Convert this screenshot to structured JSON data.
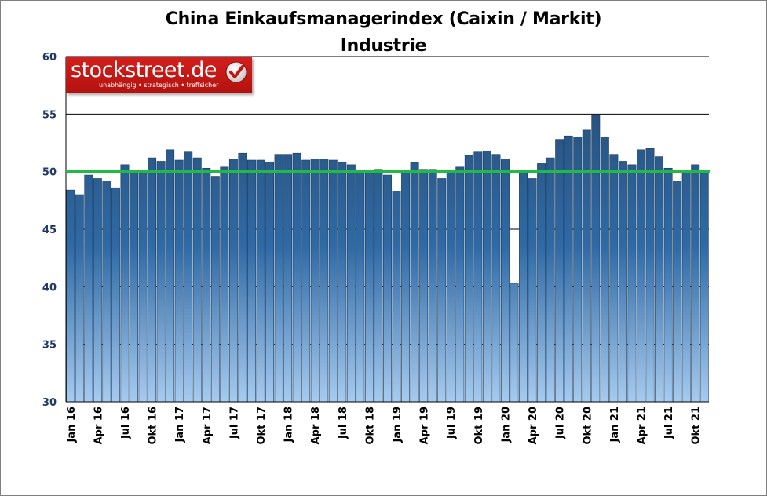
{
  "chart_data": {
    "type": "bar",
    "title": "China Einkaufsmanagerindex (Caixin / Markit)",
    "subtitle": "Industrie",
    "ylim": [
      30,
      60
    ],
    "yticks": [
      30,
      35,
      40,
      45,
      50,
      55,
      60
    ],
    "reference_line": {
      "value": 50,
      "color": "#1fbb45"
    },
    "bar_color_top": "#24496f",
    "bar_color_bottom": "#a6cbf0",
    "grid": true,
    "x_tick_labels": [
      {
        "index": 0,
        "label": "Jan 16"
      },
      {
        "index": 3,
        "label": "Apr 16"
      },
      {
        "index": 6,
        "label": "Jul 16"
      },
      {
        "index": 9,
        "label": "Okt 16"
      },
      {
        "index": 12,
        "label": "Jan 17"
      },
      {
        "index": 15,
        "label": "Apr 17"
      },
      {
        "index": 18,
        "label": "Jul 17"
      },
      {
        "index": 21,
        "label": "Okt 17"
      },
      {
        "index": 24,
        "label": "Jan 18"
      },
      {
        "index": 27,
        "label": "Apr 18"
      },
      {
        "index": 30,
        "label": "Jul 18"
      },
      {
        "index": 33,
        "label": "Okt 18"
      },
      {
        "index": 36,
        "label": "Jan 19"
      },
      {
        "index": 39,
        "label": "Apr 19"
      },
      {
        "index": 42,
        "label": "Jul 19"
      },
      {
        "index": 45,
        "label": "Okt 19"
      },
      {
        "index": 48,
        "label": "Jan 20"
      },
      {
        "index": 51,
        "label": "Apr 20"
      },
      {
        "index": 54,
        "label": "Jul 20"
      },
      {
        "index": 57,
        "label": "Okt 20"
      },
      {
        "index": 60,
        "label": "Jan 21"
      },
      {
        "index": 63,
        "label": "Apr 21"
      },
      {
        "index": 66,
        "label": "Jul 21"
      },
      {
        "index": 69,
        "label": "Okt 21"
      }
    ],
    "values": [
      48.4,
      48.0,
      49.7,
      49.4,
      49.2,
      48.6,
      50.6,
      50.0,
      50.1,
      51.2,
      50.9,
      51.9,
      51.0,
      51.7,
      51.2,
      50.3,
      49.6,
      50.4,
      51.1,
      51.6,
      51.0,
      51.0,
      50.8,
      51.5,
      51.5,
      51.6,
      51.0,
      51.1,
      51.1,
      51.0,
      50.8,
      50.6,
      50.0,
      50.1,
      50.2,
      49.7,
      48.3,
      49.9,
      50.8,
      50.2,
      50.2,
      49.4,
      49.9,
      50.4,
      51.4,
      51.7,
      51.8,
      51.5,
      51.1,
      40.3,
      50.1,
      49.4,
      50.7,
      51.2,
      52.8,
      53.1,
      53.0,
      53.6,
      54.9,
      53.0,
      51.5,
      50.9,
      50.6,
      51.9,
      52.0,
      51.3,
      50.3,
      49.2,
      50.0,
      50.6,
      49.9
    ]
  },
  "logo": {
    "name": "stockstreet.de",
    "claim": "unabhängig • strategisch • treffsicher",
    "icon": "check-icon"
  }
}
